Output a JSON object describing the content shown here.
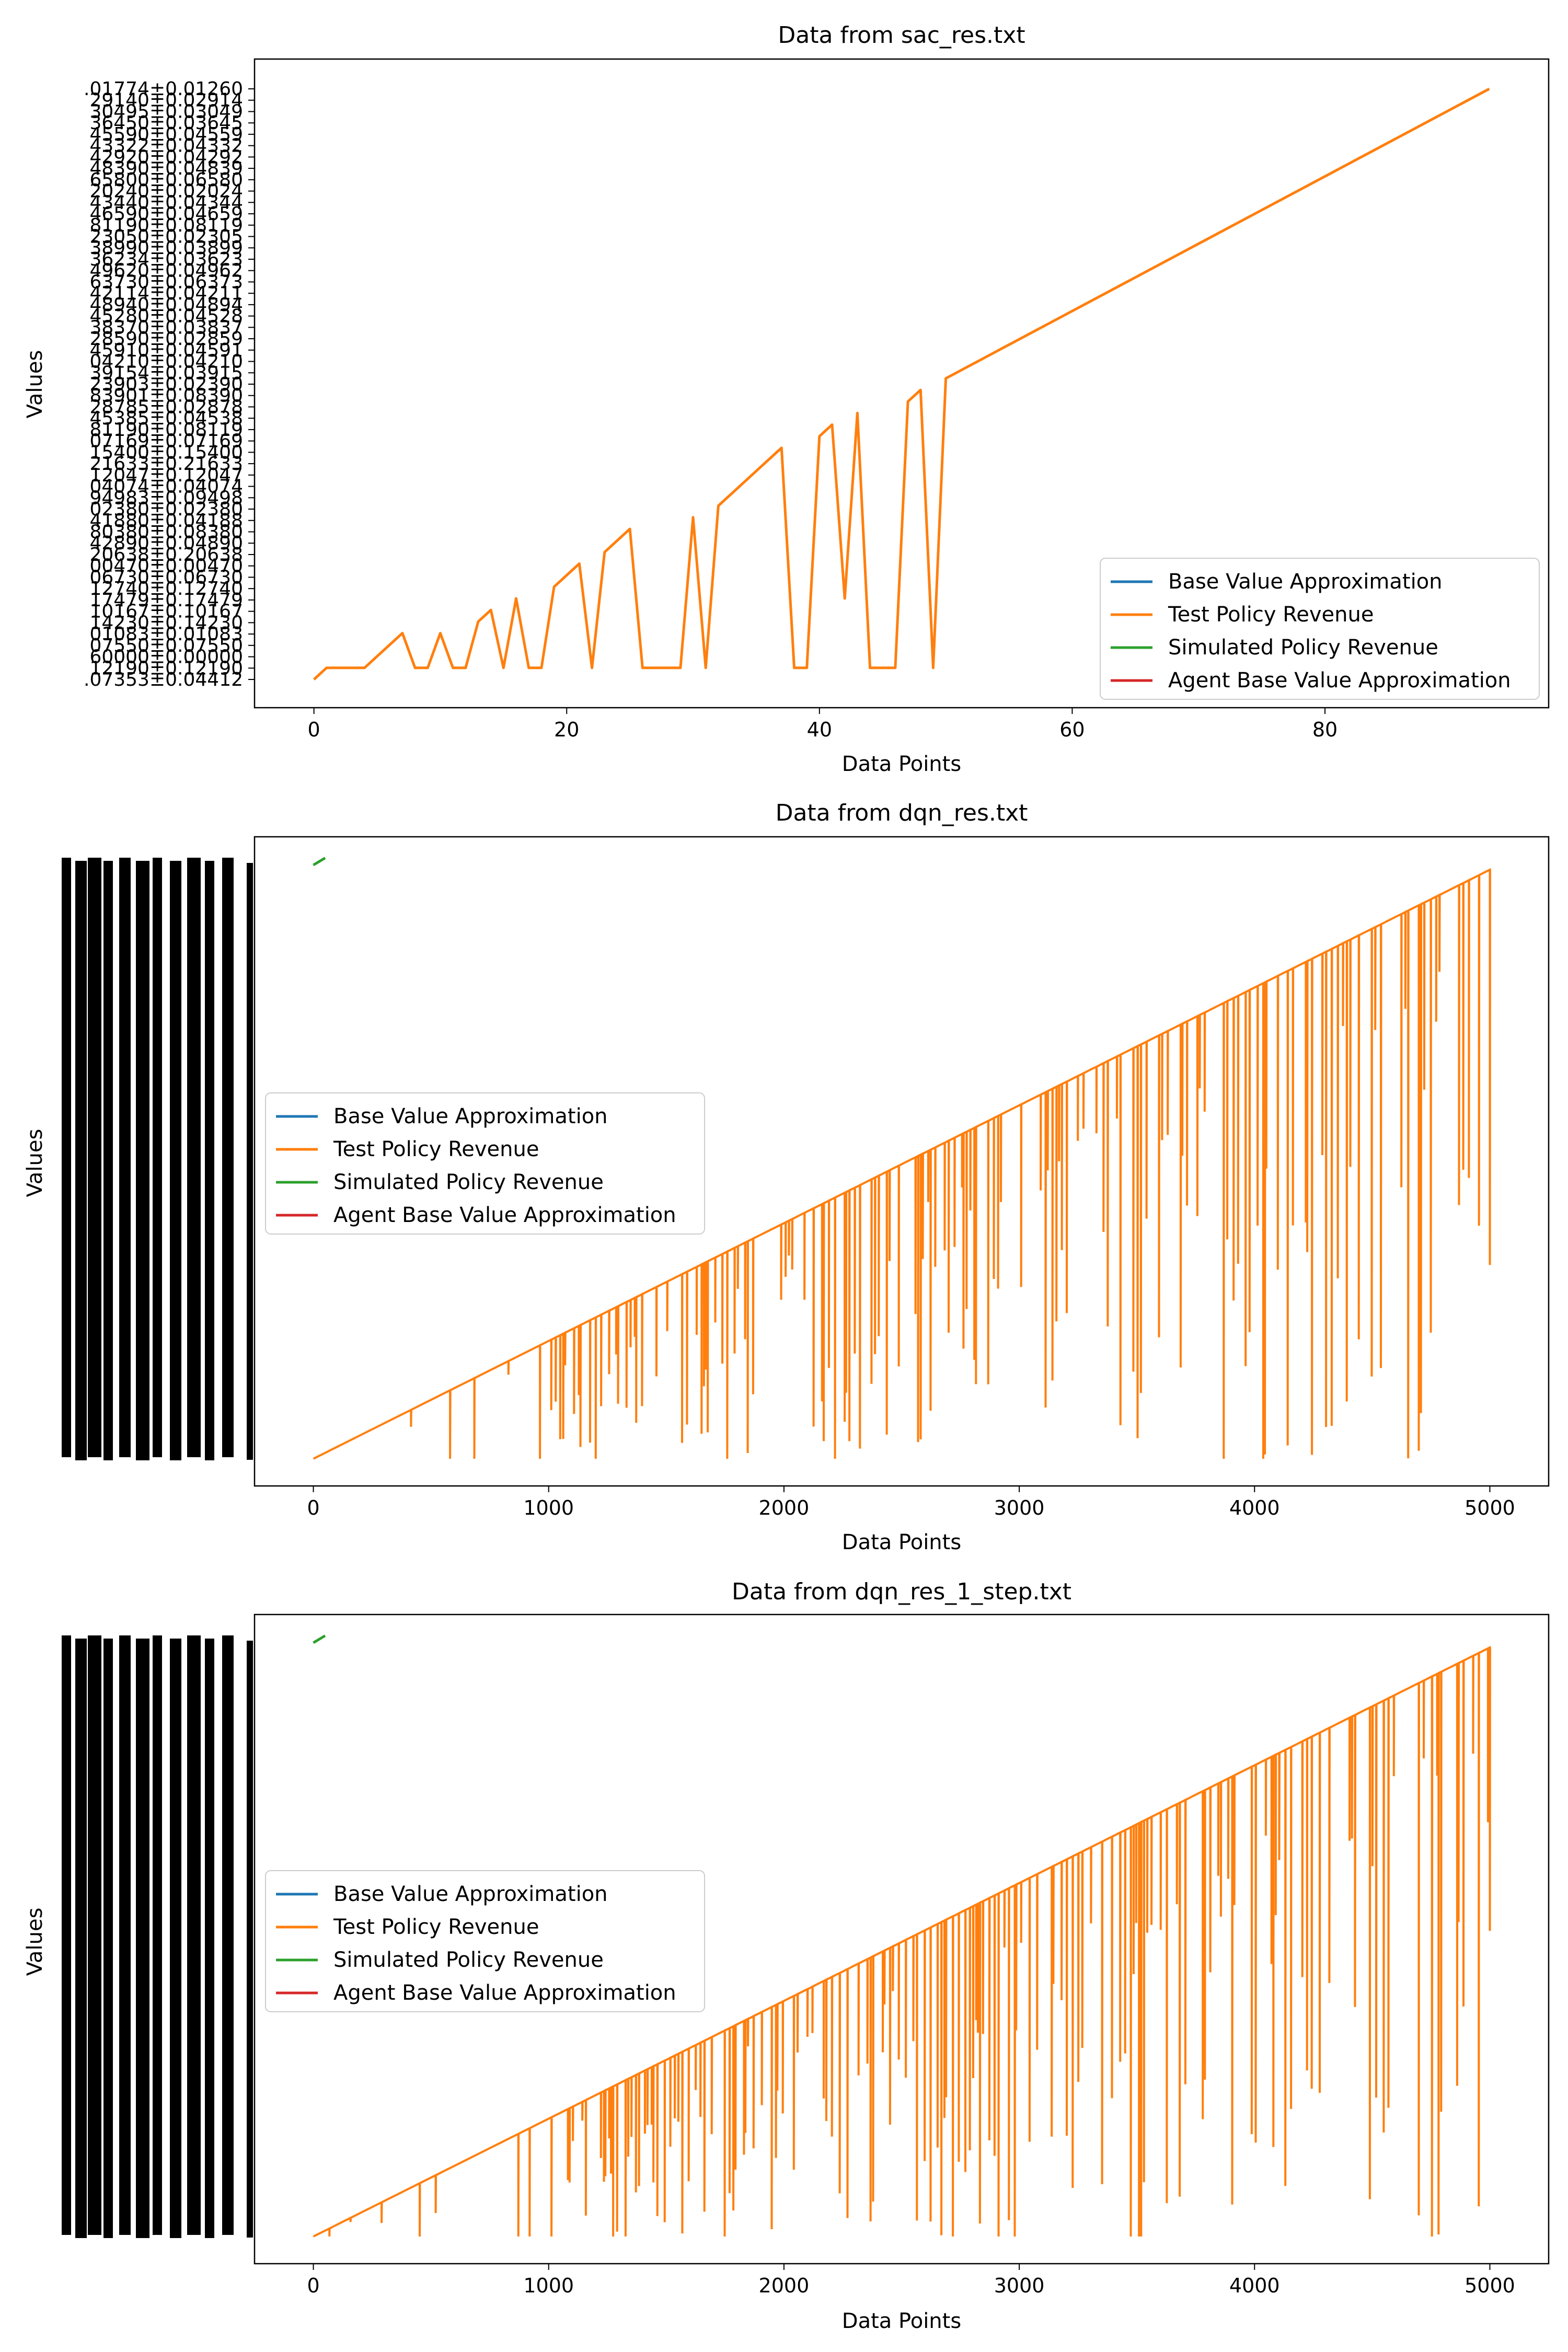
{
  "colors": {
    "base": "#1f77b4",
    "test": "#ff7f0e",
    "sim": "#2ca02c",
    "agent": "#d62728"
  },
  "chart_data": [
    {
      "type": "line",
      "title": "Data from sac_res.txt",
      "xlabel": "Data Points",
      "ylabel": "Values",
      "xlim": [
        -4.7,
        97.7
      ],
      "x_ticks": [
        0,
        20,
        40,
        60,
        80
      ],
      "x_tick_labels": [
        "0",
        "20",
        "40",
        "60",
        "80"
      ],
      "legend_position": "lower right",
      "legend": [
        "Base Value Approximation",
        "Test Policy Revenue",
        "Simulated Policy Revenue",
        "Agent Base Value Approximation"
      ],
      "y_tick_labels": [
        ".07353±0.04412",
        "12190±0.12190",
        "60000±0.00000",
        "07550±0.07550",
        "01083±0.01083",
        "14230±0.14230",
        "10167±0.10167",
        "17479±0.17479",
        "12740±0.12740",
        "06730±0.06730",
        "00470±0.00470",
        "20638±0.20638",
        "42890±0.04890",
        "80380±0.08380",
        "41880±0.04188",
        "02380±0.02380",
        "94983±0.09498",
        "04074±0.04074",
        "12047±0.12047",
        "21633±0.21633",
        "15400±0.15400",
        "07169±0.07169",
        "81190±0.08119",
        "45385±0.04538",
        "28785±0.02878",
        "83901±0.08390",
        "23903±0.02390",
        "39154±0.03915",
        "04210±0.04210",
        "45910±0.04591",
        "28590±0.02859",
        "38370±0.03837",
        "45280±0.04528",
        "48940±0.04894",
        "42114±0.04211",
        "63730±0.06373",
        "49620±0.04962",
        "36234±0.03623",
        "38990±0.03899",
        "23050±0.02305",
        "81190±0.08119",
        "46590±0.04659",
        "43440±0.04344",
        "20240±0.02024",
        "65800±0.06580",
        "48390±0.04839",
        "42920±0.04292",
        "43322±0.04332",
        "45590±0.04559",
        "36450±0.03645",
        "30495±0.03049",
        "29140±0.02914",
        ".01774±0.01260"
      ],
      "series": [
        {
          "name": "Test Policy Revenue",
          "color_key": "test",
          "x": [
            0,
            1,
            2,
            3,
            4,
            5,
            6,
            7,
            8,
            9,
            10,
            11,
            12,
            13,
            14,
            15,
            16,
            17,
            18,
            19,
            20,
            21,
            22,
            23,
            24,
            25,
            26,
            27,
            28,
            29,
            30,
            31,
            32,
            33,
            34,
            35,
            36,
            37,
            38,
            39,
            40,
            41,
            42,
            43,
            44,
            45,
            46,
            47,
            48,
            49,
            50,
            93
          ],
          "y": [
            0,
            1,
            1,
            1,
            1,
            2,
            3,
            4,
            1,
            1,
            4,
            1,
            1,
            5,
            6,
            1,
            7,
            1,
            1,
            8,
            9,
            10,
            1,
            11,
            12,
            13,
            1,
            1,
            1,
            1,
            14,
            1,
            15,
            16,
            17,
            18,
            19,
            20,
            1,
            1,
            21,
            22,
            7,
            23,
            1,
            1,
            1,
            24,
            25,
            1,
            26,
            51
          ]
        }
      ]
    },
    {
      "type": "line",
      "title": "Data from dqn_res.txt",
      "xlabel": "Data Points",
      "ylabel": "Values",
      "xlim": [
        -250,
        5250
      ],
      "x_ticks": [
        0,
        1000,
        2000,
        3000,
        4000,
        5000
      ],
      "x_tick_labels": [
        "0",
        "1000",
        "2000",
        "3000",
        "4000",
        "5000"
      ],
      "y_ticks_note": "illegible overlapping labels",
      "legend_position": "center left",
      "legend": [
        "Base Value Approximation",
        "Test Policy Revenue",
        "Simulated Policy Revenue",
        "Agent Base Value Approximation"
      ],
      "series": [
        {
          "name": "Test Policy Revenue",
          "color_key": "test",
          "x_start": 0,
          "x_end": 5000,
          "y_start": 0,
          "y_end": 5000,
          "pattern": "sawtooth with frequent drops"
        },
        {
          "name": "Simulated Policy Revenue",
          "color_key": "sim",
          "x": [
            0,
            50
          ],
          "y": [
            5040,
            5100
          ]
        }
      ]
    },
    {
      "type": "line",
      "title": "Data from dqn_res_1_step.txt",
      "xlabel": "Data Points",
      "ylabel": "Values",
      "xlim": [
        -250,
        5250
      ],
      "x_ticks": [
        0,
        1000,
        2000,
        3000,
        4000,
        5000
      ],
      "x_tick_labels": [
        "0",
        "1000",
        "2000",
        "3000",
        "4000",
        "5000"
      ],
      "y_ticks_note": "illegible overlapping labels",
      "legend_position": "center left",
      "legend": [
        "Base Value Approximation",
        "Test Policy Revenue",
        "Simulated Policy Revenue",
        "Agent Base Value Approximation"
      ],
      "series": [
        {
          "name": "Test Policy Revenue",
          "color_key": "test",
          "x_start": 0,
          "x_end": 5000,
          "y_start": 0,
          "y_end": 5000,
          "pattern": "sawtooth with frequent drops"
        },
        {
          "name": "Simulated Policy Revenue",
          "color_key": "sim",
          "x": [
            0,
            50
          ],
          "y": [
            5040,
            5100
          ]
        }
      ]
    }
  ]
}
